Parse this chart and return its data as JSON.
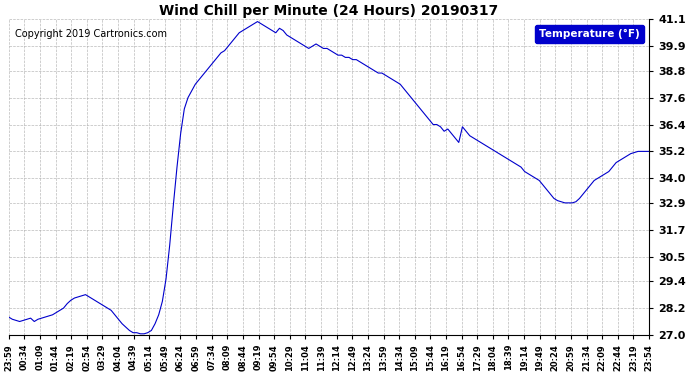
{
  "title": "Wind Chill per Minute (24 Hours) 20190317",
  "copyright": "Copyright 2019 Cartronics.com",
  "legend_label": "Temperature (°F)",
  "ylim": [
    27.0,
    41.1
  ],
  "yticks": [
    27.0,
    28.2,
    29.4,
    30.5,
    31.7,
    32.9,
    34.0,
    35.2,
    36.4,
    37.6,
    38.8,
    39.9,
    41.1
  ],
  "ytick_labels": [
    "27.0",
    "28.2",
    "29.4",
    "30.5",
    "31.7",
    "32.9",
    "34.0",
    "35.2",
    "36.4",
    "37.6",
    "38.8",
    "39.9",
    "41.1"
  ],
  "line_color": "#0000cc",
  "background_color": "#ffffff",
  "grid_color": "#aaaaaa",
  "xtick_labels": [
    "23:59",
    "00:34",
    "01:09",
    "01:44",
    "02:19",
    "02:54",
    "03:29",
    "04:04",
    "04:39",
    "05:14",
    "05:49",
    "06:24",
    "06:59",
    "07:34",
    "08:09",
    "08:44",
    "09:19",
    "09:54",
    "10:29",
    "11:04",
    "11:39",
    "12:14",
    "12:49",
    "13:24",
    "13:59",
    "14:34",
    "15:09",
    "15:44",
    "16:19",
    "16:54",
    "17:29",
    "18:04",
    "18:39",
    "19:14",
    "19:49",
    "20:24",
    "20:59",
    "21:34",
    "22:09",
    "22:44",
    "23:19",
    "23:54"
  ],
  "data_y": [
    27.8,
    27.7,
    27.65,
    27.6,
    27.65,
    27.7,
    27.75,
    27.6,
    27.7,
    27.75,
    27.8,
    27.85,
    27.9,
    28.0,
    28.1,
    28.2,
    28.4,
    28.55,
    28.65,
    28.7,
    28.75,
    28.8,
    28.7,
    28.6,
    28.5,
    28.4,
    28.3,
    28.2,
    28.1,
    27.9,
    27.7,
    27.5,
    27.35,
    27.2,
    27.1,
    27.1,
    27.05,
    27.05,
    27.1,
    27.2,
    27.5,
    27.9,
    28.5,
    29.5,
    31.0,
    32.8,
    34.5,
    36.0,
    37.1,
    37.6,
    37.9,
    38.2,
    38.4,
    38.6,
    38.8,
    39.0,
    39.2,
    39.4,
    39.6,
    39.7,
    39.9,
    40.1,
    40.3,
    40.5,
    40.6,
    40.7,
    40.8,
    40.9,
    41.0,
    40.9,
    40.8,
    40.7,
    40.6,
    40.5,
    40.7,
    40.6,
    40.4,
    40.3,
    40.2,
    40.1,
    40.0,
    39.9,
    39.8,
    39.9,
    40.0,
    39.9,
    39.8,
    39.8,
    39.7,
    39.6,
    39.5,
    39.5,
    39.4,
    39.4,
    39.3,
    39.3,
    39.2,
    39.1,
    39.0,
    38.9,
    38.8,
    38.7,
    38.7,
    38.6,
    38.5,
    38.4,
    38.3,
    38.2,
    38.0,
    37.8,
    37.6,
    37.4,
    37.2,
    37.0,
    36.8,
    36.6,
    36.4,
    36.4,
    36.3,
    36.1,
    36.2,
    36.0,
    35.8,
    35.6,
    36.3,
    36.1,
    35.9,
    35.8,
    35.7,
    35.6,
    35.5,
    35.4,
    35.3,
    35.2,
    35.1,
    35.0,
    34.9,
    34.8,
    34.7,
    34.6,
    34.5,
    34.3,
    34.2,
    34.1,
    34.0,
    33.9,
    33.7,
    33.5,
    33.3,
    33.1,
    33.0,
    32.95,
    32.9,
    32.9,
    32.9,
    32.95,
    33.1,
    33.3,
    33.5,
    33.7,
    33.9,
    34.0,
    34.1,
    34.2,
    34.3,
    34.5,
    34.7,
    34.8,
    34.9,
    35.0,
    35.1,
    35.15,
    35.2,
    35.2,
    35.2,
    35.2
  ]
}
